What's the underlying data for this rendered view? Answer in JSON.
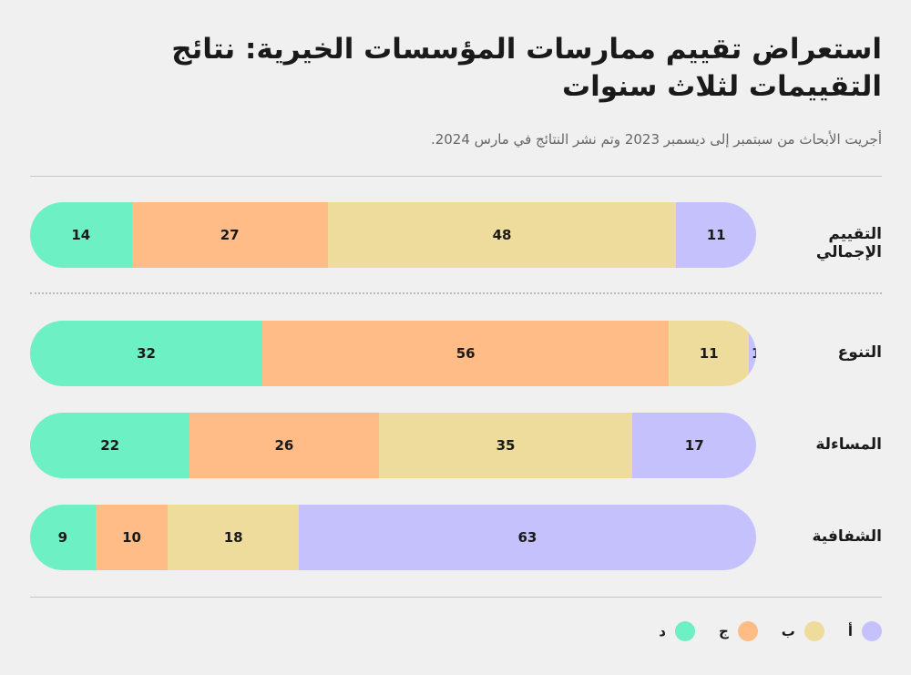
{
  "title": "استعراض تقييم ممارسات المؤسسات الخيرية: نتائج التقييمات لثلاث سنوات",
  "subtitle": "أجريت الأبحاث من سبتمبر إلى ديسمبر 2023 وتم نشر النتائج في مارس 2024.",
  "colors": {
    "a": "#c5c1fd",
    "b": "#eddc9b",
    "c": "#ffbc86",
    "d": "#6df0c4"
  },
  "legend": [
    {
      "key": "a",
      "label": "أ"
    },
    {
      "key": "b",
      "label": "ب"
    },
    {
      "key": "c",
      "label": "ج"
    },
    {
      "key": "d",
      "label": "د"
    }
  ],
  "chart_data": {
    "type": "bar",
    "orientation": "horizontal",
    "stacked": true,
    "total": 100,
    "categories": [
      "التقييم الإجمالي",
      "التنوع",
      "المساءلة",
      "الشفافية"
    ],
    "series": [
      {
        "name": "أ",
        "key": "a",
        "values": [
          11,
          1,
          17,
          63
        ]
      },
      {
        "name": "ب",
        "key": "b",
        "values": [
          48,
          11,
          35,
          18
        ]
      },
      {
        "name": "ج",
        "key": "c",
        "values": [
          27,
          56,
          26,
          10
        ]
      },
      {
        "name": "د",
        "key": "d",
        "values": [
          14,
          32,
          22,
          9
        ]
      }
    ],
    "legend_position": "bottom-right"
  }
}
